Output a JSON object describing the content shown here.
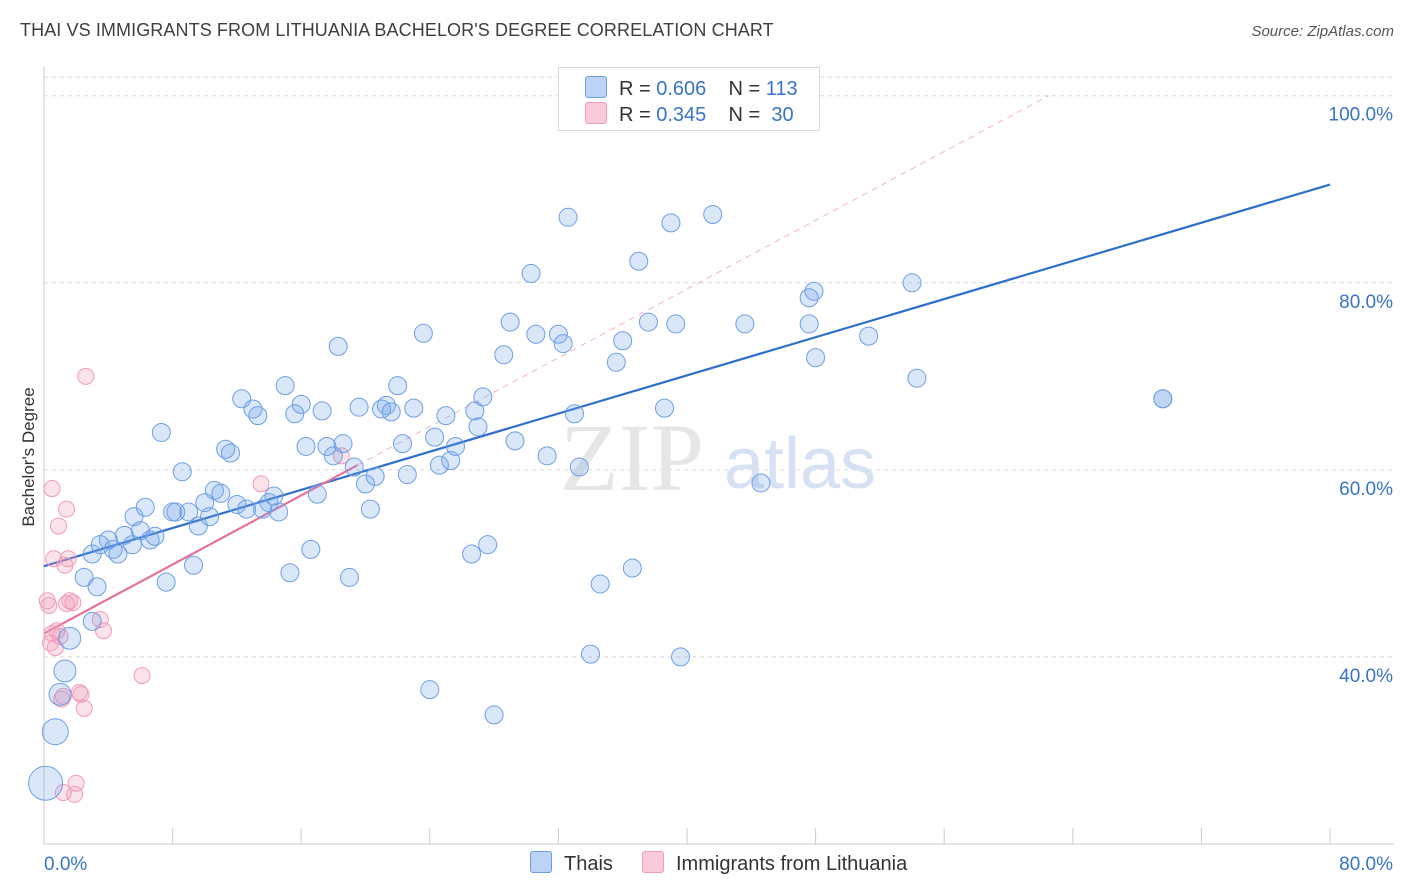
{
  "header": {
    "title": "THAI VS IMMIGRANTS FROM LITHUANIA BACHELOR'S DEGREE CORRELATION CHART",
    "source": "Source: ZipAtlas.com"
  },
  "legend": {
    "rows": [
      {
        "r_label": "R =",
        "r_value": "0.606",
        "n_label": "N =",
        "n_value": "113"
      },
      {
        "r_label": "R =",
        "r_value": "0.345",
        "n_label": "N =",
        "n_value": "30"
      }
    ],
    "bottom": [
      "Thais",
      "Immigrants from Lithuania"
    ]
  },
  "watermark": {
    "zip": "ZIP",
    "atlas": "atlas"
  },
  "chart_data": {
    "type": "scatter",
    "title": "THAI VS IMMIGRANTS FROM LITHUANIA BACHELOR'S DEGREE CORRELATION CHART",
    "ylabel": "Bachelor's Degree",
    "xlabel": "",
    "xlim": [
      0,
      80
    ],
    "ylim": [
      20,
      102
    ],
    "x_tick_labels": [
      "0.0%",
      "80.0%"
    ],
    "y_tick_labels": [
      "40.0%",
      "60.0%",
      "80.0%",
      "100.0%"
    ],
    "y_ticks": [
      40,
      60,
      80,
      100
    ],
    "x_ticks": [
      0,
      8,
      16,
      24,
      32,
      40,
      48,
      56,
      64,
      72,
      80
    ],
    "grid": "horizontal dashed",
    "legend_position": "top-center",
    "colors": {
      "thais": "#6d9ee6",
      "thais_line": "#2f6fcc",
      "lithuania": "#f29ab8",
      "lithuania_line": "#e8719a",
      "tick_label": "#3874c8"
    },
    "series": [
      {
        "name": "Thais",
        "R": 0.606,
        "N": 113,
        "trend": {
          "x": [
            0,
            80
          ],
          "y": [
            49.7,
            90.5
          ]
        },
        "points": [
          [
            0.1,
            26.5
          ],
          [
            0.7,
            32
          ],
          [
            1,
            36
          ],
          [
            1.3,
            38.5
          ],
          [
            1.6,
            42
          ],
          [
            2.5,
            48.5
          ],
          [
            3,
            51
          ],
          [
            3.3,
            47.5
          ],
          [
            3,
            43.8
          ],
          [
            3.5,
            52
          ],
          [
            4,
            52.5
          ],
          [
            4.3,
            51.5
          ],
          [
            4.6,
            51
          ],
          [
            5,
            53
          ],
          [
            5.5,
            52
          ],
          [
            5.6,
            55
          ],
          [
            6,
            53.5
          ],
          [
            6.3,
            56
          ],
          [
            6.6,
            52.5
          ],
          [
            6.9,
            52.9
          ],
          [
            7.3,
            64
          ],
          [
            7.6,
            48
          ],
          [
            8,
            55.5
          ],
          [
            8.2,
            55.5
          ],
          [
            8.6,
            59.8
          ],
          [
            9,
            55.5
          ],
          [
            9.3,
            49.8
          ],
          [
            9.6,
            54
          ],
          [
            10,
            56.5
          ],
          [
            10.3,
            55
          ],
          [
            10.6,
            57.8
          ],
          [
            11,
            57.5
          ],
          [
            11.3,
            62.2
          ],
          [
            11.6,
            61.8
          ],
          [
            12,
            56.3
          ],
          [
            12.3,
            67.6
          ],
          [
            12.6,
            55.8
          ],
          [
            13,
            66.5
          ],
          [
            13.3,
            65.8
          ],
          [
            13.6,
            55.8
          ],
          [
            14,
            56.5
          ],
          [
            14.3,
            57.2
          ],
          [
            14.6,
            55.5
          ],
          [
            15,
            69
          ],
          [
            15.3,
            49
          ],
          [
            15.6,
            66
          ],
          [
            16,
            67
          ],
          [
            16.3,
            62.5
          ],
          [
            16.6,
            51.5
          ],
          [
            17,
            57.4
          ],
          [
            17.3,
            66.3
          ],
          [
            17.6,
            62.5
          ],
          [
            18,
            61.5
          ],
          [
            18.3,
            73.2
          ],
          [
            18.6,
            62.8
          ],
          [
            19,
            48.5
          ],
          [
            19.3,
            60.3
          ],
          [
            19.6,
            66.7
          ],
          [
            20,
            58.5
          ],
          [
            20.3,
            55.8
          ],
          [
            20.6,
            59.3
          ],
          [
            21,
            66.5
          ],
          [
            21.3,
            66.9
          ],
          [
            21.6,
            66.2
          ],
          [
            22,
            69
          ],
          [
            22.3,
            62.8
          ],
          [
            22.6,
            59.5
          ],
          [
            23,
            66.6
          ],
          [
            23.6,
            74.6
          ],
          [
            24,
            36.5
          ],
          [
            24.3,
            63.5
          ],
          [
            24.6,
            60.5
          ],
          [
            25,
            65.8
          ],
          [
            25.3,
            61
          ],
          [
            25.6,
            62.5
          ],
          [
            26.6,
            51
          ],
          [
            26.8,
            66.3
          ],
          [
            27,
            64.6
          ],
          [
            27.3,
            67.8
          ],
          [
            27.6,
            52
          ],
          [
            28,
            33.8
          ],
          [
            28.6,
            72.3
          ],
          [
            29,
            75.8
          ],
          [
            29.3,
            63.1
          ],
          [
            30.3,
            81
          ],
          [
            30.6,
            74.5
          ],
          [
            31.3,
            61.5
          ],
          [
            32,
            74.5
          ],
          [
            32.3,
            73.5
          ],
          [
            32.6,
            87
          ],
          [
            33,
            66
          ],
          [
            33.3,
            60.3
          ],
          [
            34,
            40.3
          ],
          [
            34.6,
            47.8
          ],
          [
            35.6,
            71.5
          ],
          [
            36,
            73.8
          ],
          [
            36.6,
            49.5
          ],
          [
            37,
            82.3
          ],
          [
            37.6,
            75.8
          ],
          [
            38.6,
            66.6
          ],
          [
            39,
            86.4
          ],
          [
            39.3,
            75.6
          ],
          [
            39.6,
            40
          ],
          [
            41.6,
            87.3
          ],
          [
            43.6,
            75.6
          ],
          [
            44.6,
            58.6
          ],
          [
            47.6,
            75.6
          ],
          [
            47.6,
            78.4
          ],
          [
            47.9,
            79.1
          ],
          [
            48,
            72
          ],
          [
            51.3,
            74.3
          ],
          [
            54,
            80
          ],
          [
            54.3,
            69.8
          ],
          [
            69.6,
            67.6
          ],
          [
            69.6,
            67.6
          ]
        ]
      },
      {
        "name": "Immigrants from Lithuania",
        "R": 0.345,
        "N": 30,
        "trend": {
          "x": [
            0,
            19.5
          ],
          "y": [
            42.5,
            60.5
          ]
        },
        "trend_extended": {
          "x": [
            19.5,
            62.5
          ],
          "y": [
            60.5,
            100
          ]
        },
        "points": [
          [
            0.2,
            46
          ],
          [
            0.3,
            45.5
          ],
          [
            0.4,
            41.5
          ],
          [
            0.5,
            42.5
          ],
          [
            0.5,
            58
          ],
          [
            0.6,
            50.5
          ],
          [
            0.7,
            41
          ],
          [
            0.9,
            54
          ],
          [
            1,
            42.2
          ],
          [
            1.1,
            35.5
          ],
          [
            1.2,
            35.8
          ],
          [
            1.3,
            49.8
          ],
          [
            1.4,
            55.8
          ],
          [
            1.5,
            50.5
          ],
          [
            1.6,
            46
          ],
          [
            1.8,
            45.8
          ],
          [
            1.2,
            25.5
          ],
          [
            1.9,
            25.3
          ],
          [
            2,
            26.5
          ],
          [
            2.2,
            36.2
          ],
          [
            2.3,
            36
          ],
          [
            2.5,
            34.5
          ],
          [
            2.6,
            70
          ],
          [
            3.5,
            44
          ],
          [
            3.7,
            42.8
          ],
          [
            6.1,
            38
          ],
          [
            13.5,
            58.5
          ],
          [
            18.5,
            61.5
          ],
          [
            0.8,
            42.8
          ],
          [
            1.4,
            45.7
          ]
        ]
      }
    ]
  }
}
